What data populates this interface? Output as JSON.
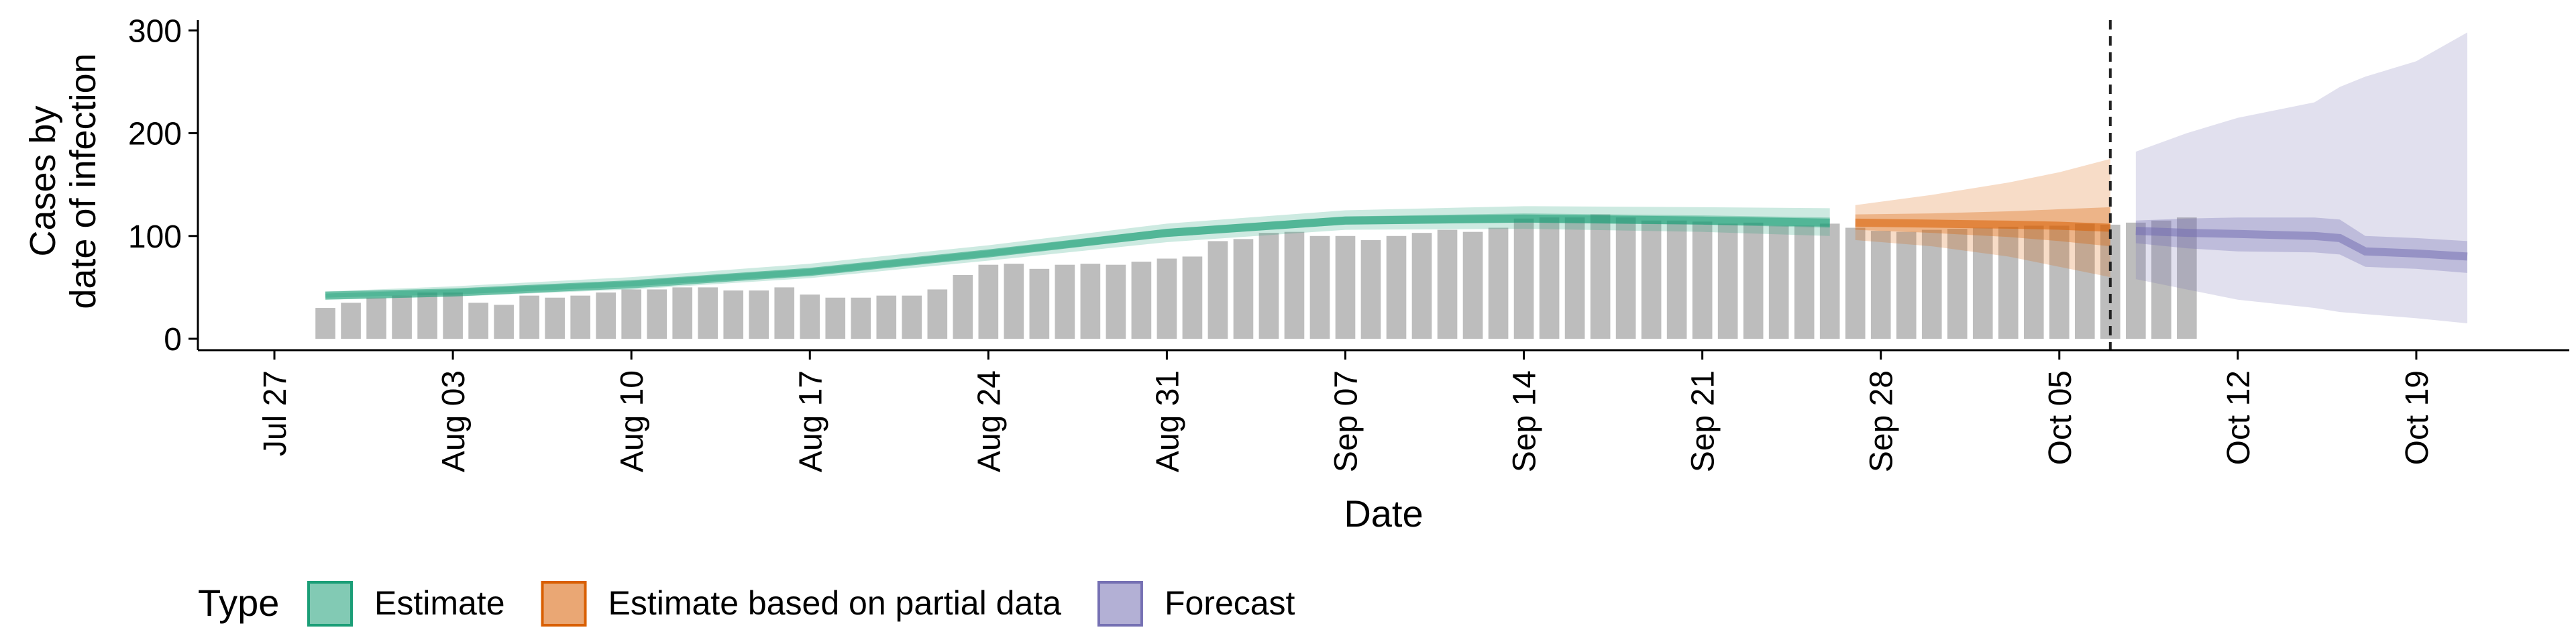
{
  "chart_data": {
    "type": "bar",
    "xlabel": "Date",
    "ylabel": [
      "Cases by",
      "date of infection"
    ],
    "ylim": [
      0,
      310
    ],
    "y_ticks": [
      0,
      100,
      200,
      300
    ],
    "x_range": [
      "2020-07-24",
      "2020-10-25"
    ],
    "x_ticks": [
      {
        "date": "2020-07-27",
        "label": "Jul 27"
      },
      {
        "date": "2020-08-03",
        "label": "Aug 03"
      },
      {
        "date": "2020-08-10",
        "label": "Aug 10"
      },
      {
        "date": "2020-08-17",
        "label": "Aug 17"
      },
      {
        "date": "2020-08-24",
        "label": "Aug 24"
      },
      {
        "date": "2020-08-31",
        "label": "Aug 31"
      },
      {
        "date": "2020-09-07",
        "label": "Sep 07"
      },
      {
        "date": "2020-09-14",
        "label": "Sep 14"
      },
      {
        "date": "2020-09-21",
        "label": "Sep 21"
      },
      {
        "date": "2020-09-28",
        "label": "Sep 28"
      },
      {
        "date": "2020-10-05",
        "label": "Oct 05"
      },
      {
        "date": "2020-10-12",
        "label": "Oct 12"
      },
      {
        "date": "2020-10-19",
        "label": "Oct 19"
      }
    ],
    "bars": {
      "start_date": "2020-07-29",
      "values": [
        30,
        35,
        40,
        42,
        45,
        45,
        35,
        33,
        42,
        40,
        42,
        45,
        48,
        48,
        50,
        50,
        47,
        47,
        50,
        43,
        40,
        40,
        42,
        42,
        48,
        62,
        72,
        73,
        68,
        72,
        73,
        72,
        75,
        78,
        80,
        95,
        97,
        103,
        104,
        100,
        100,
        96,
        100,
        103,
        106,
        104,
        108,
        117,
        118,
        118,
        121,
        118,
        115,
        115,
        114,
        112,
        113,
        110,
        110,
        112,
        108,
        105,
        104,
        106,
        107,
        108,
        109,
        110,
        110,
        112,
        111,
        113,
        115,
        118
      ]
    },
    "forecast_date": "2020-10-07",
    "series": [
      {
        "name": "Estimate",
        "color": "#1b9e77",
        "dates": [
          "2020-07-29",
          "2020-08-03",
          "2020-08-10",
          "2020-08-17",
          "2020-08-24",
          "2020-08-31",
          "2020-09-07",
          "2020-09-14",
          "2020-09-21",
          "2020-09-26"
        ],
        "median": [
          42,
          45,
          53,
          65,
          83,
          103,
          115,
          117,
          115,
          113
        ],
        "inner_lo": [
          40,
          43,
          51,
          62,
          80,
          99,
          111,
          113,
          111,
          108
        ],
        "inner_hi": [
          44,
          48,
          56,
          68,
          86,
          107,
          119,
          122,
          120,
          118
        ],
        "outer_lo": [
          38,
          41,
          48,
          59,
          76,
          94,
          106,
          107,
          104,
          100
        ],
        "outer_hi": [
          46,
          51,
          60,
          73,
          91,
          112,
          125,
          129,
          128,
          127
        ]
      },
      {
        "name": "Estimate based on partial data",
        "color": "#d95f02",
        "dates": [
          "2020-09-27",
          "2020-09-30",
          "2020-10-03",
          "2020-10-05",
          "2020-10-07"
        ],
        "median": [
          113,
          112,
          111,
          110,
          108
        ],
        "inner_lo": [
          106,
          103,
          99,
          95,
          90
        ],
        "inner_hi": [
          121,
          122,
          124,
          126,
          128
        ],
        "outer_lo": [
          96,
          90,
          80,
          70,
          60
        ],
        "outer_hi": [
          130,
          140,
          152,
          162,
          175
        ]
      },
      {
        "name": "Forecast",
        "color": "#7570b3",
        "dates": [
          "2020-10-08",
          "2020-10-10",
          "2020-10-12",
          "2020-10-15",
          "2020-10-16",
          "2020-10-17",
          "2020-10-19",
          "2020-10-21"
        ],
        "median": [
          105,
          103,
          102,
          100,
          98,
          85,
          83,
          80
        ],
        "inner_lo": [
          93,
          88,
          85,
          84,
          82,
          70,
          68,
          64
        ],
        "inner_hi": [
          115,
          117,
          118,
          118,
          116,
          100,
          98,
          95
        ],
        "outer_lo": [
          58,
          48,
          38,
          30,
          26,
          24,
          20,
          15
        ],
        "outer_hi": [
          182,
          200,
          215,
          230,
          245,
          255,
          270,
          298
        ]
      }
    ],
    "legend": {
      "title": "Type",
      "position": "bottom-left",
      "entries": [
        "Estimate",
        "Estimate based on partial data",
        "Forecast"
      ]
    }
  }
}
